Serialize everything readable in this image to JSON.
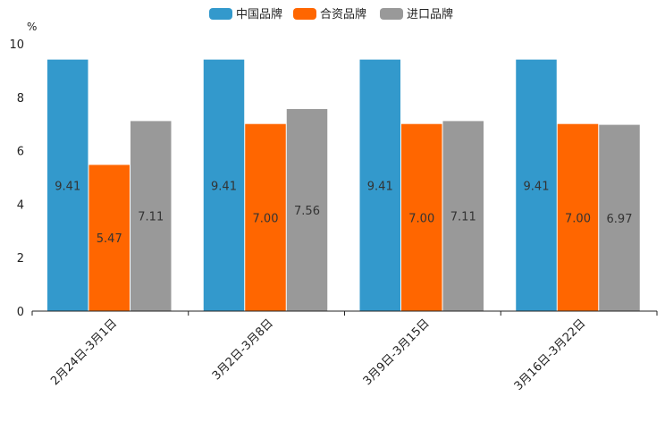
{
  "chart_data": {
    "type": "bar",
    "title": "",
    "xlabel": "",
    "ylabel": "%",
    "ylim": [
      0,
      10
    ],
    "yticks": [
      0,
      2,
      4,
      6,
      8,
      10
    ],
    "grid": false,
    "legend_position": "top-center",
    "categories": [
      "2月24日-3月1日",
      "3月2日-3月8日",
      "3月9日-3月15日",
      "3月16日-3月22日"
    ],
    "series": [
      {
        "name": "中国品牌",
        "color": "#3399cc",
        "values": [
          9.41,
          9.41,
          9.41,
          9.41
        ],
        "labels": [
          "9.41",
          "9.41",
          "9.41",
          "9.41"
        ]
      },
      {
        "name": "合资品牌",
        "color": "#ff6600",
        "values": [
          5.47,
          7.0,
          7.0,
          7.0
        ],
        "labels": [
          "5.47",
          "7.00",
          "7.00",
          "7.00"
        ]
      },
      {
        "name": "进口品牌",
        "color": "#999999",
        "values": [
          7.11,
          7.56,
          7.11,
          6.97
        ],
        "labels": [
          "7.11",
          "7.56",
          "7.11",
          "6.97"
        ]
      }
    ]
  }
}
